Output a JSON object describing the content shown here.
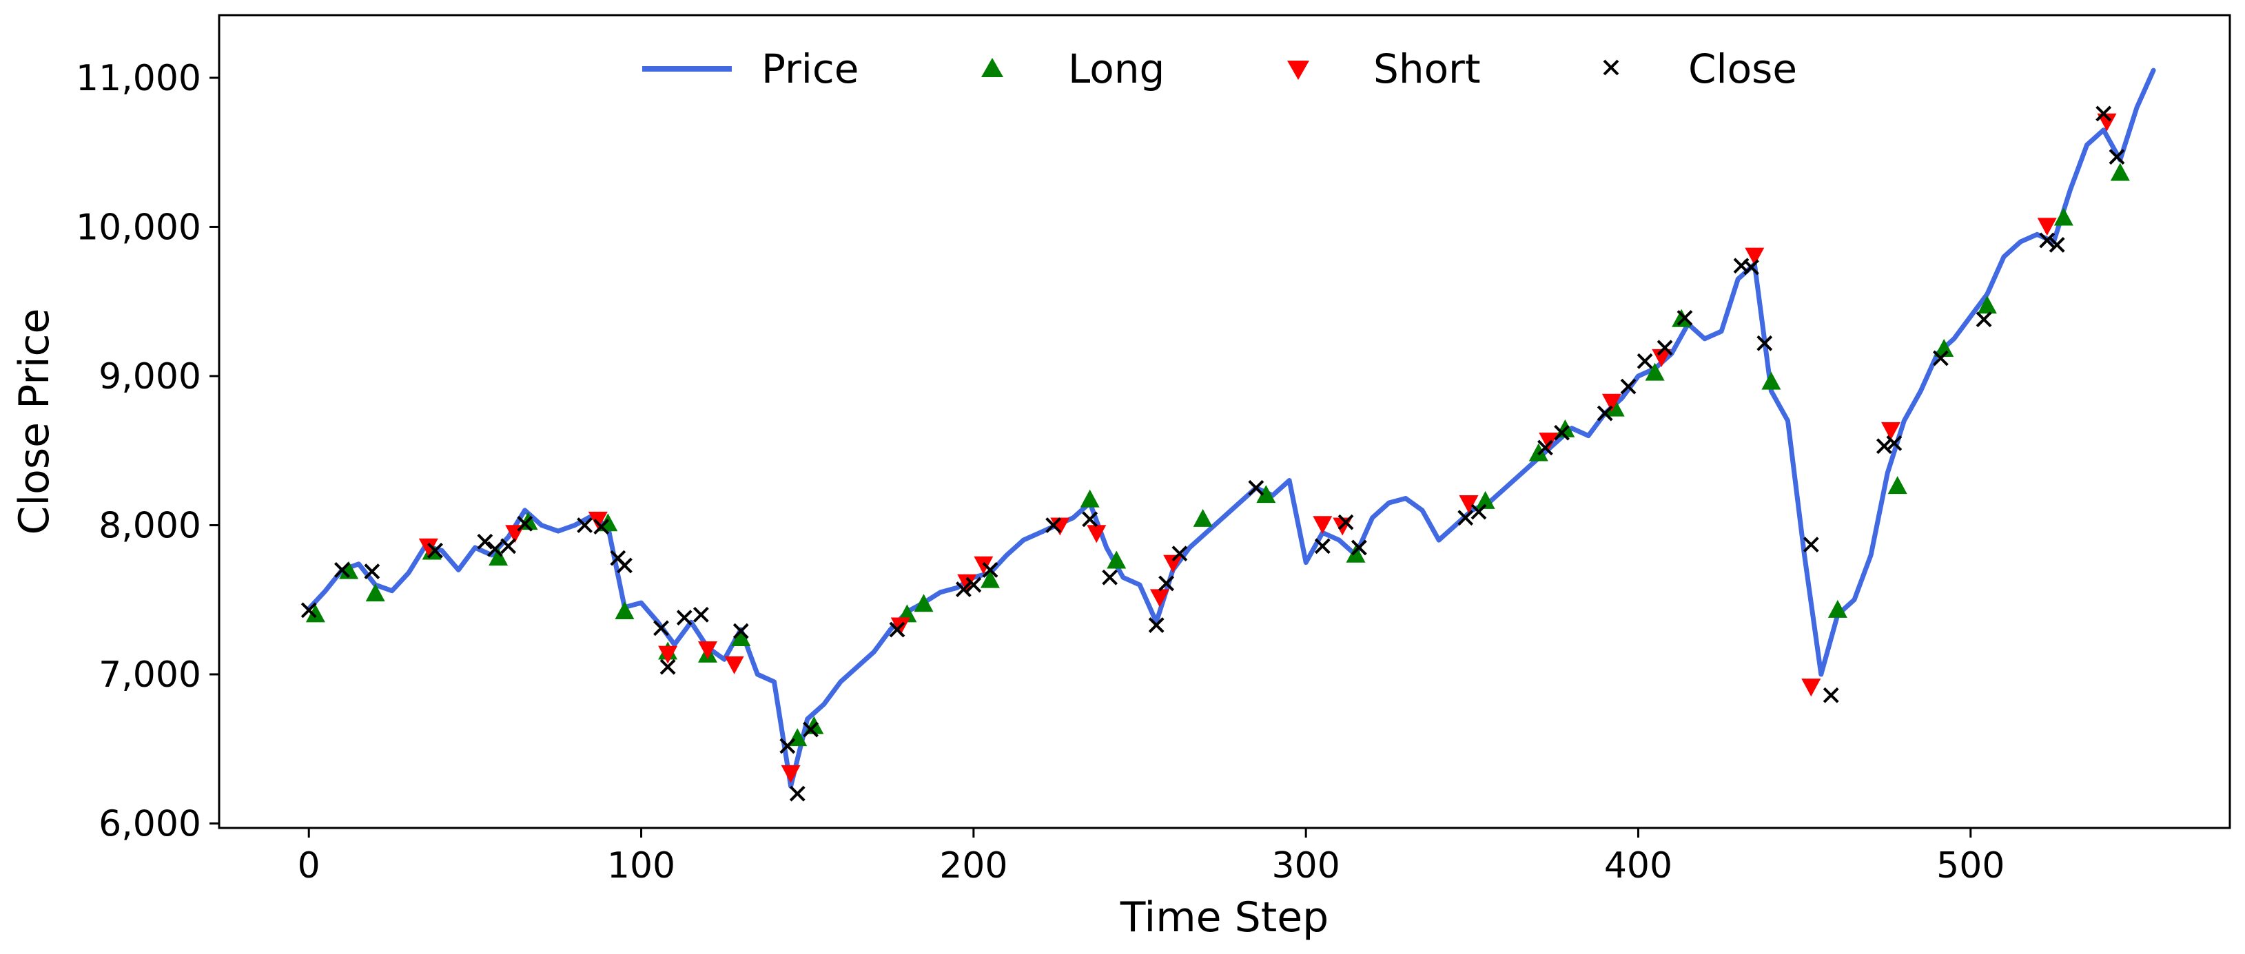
{
  "chart_data": {
    "type": "line",
    "title": "",
    "xlabel": "Time Step",
    "ylabel": "Close Price",
    "xlim": [
      -27,
      578
    ],
    "ylim": [
      5970,
      11420
    ],
    "grid": false,
    "legend_position": "top",
    "x_ticks": [
      0,
      100,
      200,
      300,
      400,
      500
    ],
    "x_tick_labels": [
      "0",
      "100",
      "200",
      "300",
      "400",
      "500"
    ],
    "y_ticks": [
      6000,
      7000,
      8000,
      9000,
      10000,
      11000
    ],
    "y_tick_labels": [
      "6,000",
      "7,000",
      "8,000",
      "9,000",
      "10,000",
      "11,000"
    ],
    "series": [
      {
        "name": "Price",
        "kind": "line",
        "color": "#4169e1",
        "points": [
          [
            0,
            7440
          ],
          [
            5,
            7560
          ],
          [
            10,
            7700
          ],
          [
            15,
            7740
          ],
          [
            20,
            7600
          ],
          [
            25,
            7560
          ],
          [
            30,
            7680
          ],
          [
            35,
            7860
          ],
          [
            40,
            7830
          ],
          [
            45,
            7700
          ],
          [
            50,
            7850
          ],
          [
            55,
            7800
          ],
          [
            60,
            7920
          ],
          [
            65,
            8100
          ],
          [
            70,
            8000
          ],
          [
            75,
            7960
          ],
          [
            80,
            8000
          ],
          [
            85,
            8060
          ],
          [
            90,
            7990
          ],
          [
            95,
            7450
          ],
          [
            100,
            7480
          ],
          [
            105,
            7350
          ],
          [
            110,
            7200
          ],
          [
            115,
            7350
          ],
          [
            120,
            7180
          ],
          [
            125,
            7100
          ],
          [
            130,
            7300
          ],
          [
            135,
            7000
          ],
          [
            140,
            6950
          ],
          [
            145,
            6250
          ],
          [
            150,
            6700
          ],
          [
            155,
            6800
          ],
          [
            160,
            6950
          ],
          [
            165,
            7050
          ],
          [
            170,
            7150
          ],
          [
            175,
            7300
          ],
          [
            180,
            7420
          ],
          [
            185,
            7480
          ],
          [
            190,
            7550
          ],
          [
            195,
            7580
          ],
          [
            200,
            7650
          ],
          [
            205,
            7680
          ],
          [
            210,
            7800
          ],
          [
            215,
            7900
          ],
          [
            220,
            7950
          ],
          [
            225,
            8000
          ],
          [
            230,
            8050
          ],
          [
            235,
            8150
          ],
          [
            240,
            7850
          ],
          [
            245,
            7650
          ],
          [
            250,
            7600
          ],
          [
            255,
            7350
          ],
          [
            260,
            7700
          ],
          [
            265,
            7850
          ],
          [
            270,
            7950
          ],
          [
            275,
            8050
          ],
          [
            280,
            8150
          ],
          [
            285,
            8250
          ],
          [
            290,
            8200
          ],
          [
            295,
            8300
          ],
          [
            300,
            7750
          ],
          [
            305,
            7950
          ],
          [
            310,
            7900
          ],
          [
            315,
            7800
          ],
          [
            320,
            8050
          ],
          [
            325,
            8150
          ],
          [
            330,
            8180
          ],
          [
            335,
            8100
          ],
          [
            340,
            7900
          ],
          [
            345,
            8000
          ],
          [
            350,
            8100
          ],
          [
            355,
            8150
          ],
          [
            360,
            8250
          ],
          [
            365,
            8350
          ],
          [
            370,
            8450
          ],
          [
            375,
            8550
          ],
          [
            380,
            8650
          ],
          [
            385,
            8600
          ],
          [
            390,
            8750
          ],
          [
            395,
            8850
          ],
          [
            400,
            9000
          ],
          [
            405,
            9050
          ],
          [
            410,
            9150
          ],
          [
            415,
            9350
          ],
          [
            420,
            9250
          ],
          [
            425,
            9300
          ],
          [
            430,
            9650
          ],
          [
            435,
            9750
          ],
          [
            440,
            8900
          ],
          [
            445,
            8700
          ],
          [
            450,
            7800
          ],
          [
            455,
            7000
          ],
          [
            460,
            7400
          ],
          [
            465,
            7500
          ],
          [
            470,
            7800
          ],
          [
            475,
            8350
          ],
          [
            480,
            8700
          ],
          [
            485,
            8900
          ],
          [
            490,
            9150
          ],
          [
            495,
            9250
          ],
          [
            500,
            9400
          ],
          [
            505,
            9550
          ],
          [
            510,
            9800
          ],
          [
            515,
            9900
          ],
          [
            520,
            9950
          ],
          [
            525,
            9900
          ],
          [
            530,
            10250
          ],
          [
            535,
            10550
          ],
          [
            540,
            10650
          ],
          [
            545,
            10450
          ],
          [
            550,
            10800
          ],
          [
            555,
            11050
          ]
        ]
      },
      {
        "name": "Long",
        "kind": "marker",
        "marker": "triangle-up",
        "color": "#008000",
        "points": [
          [
            2,
            7400
          ],
          [
            12,
            7690
          ],
          [
            20,
            7540
          ],
          [
            37,
            7820
          ],
          [
            57,
            7780
          ],
          [
            66,
            8020
          ],
          [
            90,
            8010
          ],
          [
            95,
            7420
          ],
          [
            108,
            7150
          ],
          [
            120,
            7130
          ],
          [
            130,
            7240
          ],
          [
            147,
            6570
          ],
          [
            152,
            6650
          ],
          [
            180,
            7400
          ],
          [
            185,
            7470
          ],
          [
            205,
            7630
          ],
          [
            235,
            8170
          ],
          [
            243,
            7760
          ],
          [
            269,
            8040
          ],
          [
            288,
            8200
          ],
          [
            315,
            7800
          ],
          [
            354,
            8160
          ],
          [
            370,
            8480
          ],
          [
            378,
            8640
          ],
          [
            393,
            8780
          ],
          [
            405,
            9020
          ],
          [
            413,
            9380
          ],
          [
            440,
            8960
          ],
          [
            460,
            7430
          ],
          [
            478,
            8260
          ],
          [
            492,
            9180
          ],
          [
            505,
            9470
          ],
          [
            528,
            10060
          ],
          [
            545,
            10360
          ]
        ]
      },
      {
        "name": "Short",
        "kind": "marker",
        "marker": "triangle-down",
        "color": "#ff0000",
        "points": [
          [
            36,
            7860
          ],
          [
            62,
            7950
          ],
          [
            87,
            8040
          ],
          [
            108,
            7140
          ],
          [
            120,
            7170
          ],
          [
            128,
            7070
          ],
          [
            145,
            6340
          ],
          [
            178,
            7330
          ],
          [
            198,
            7620
          ],
          [
            203,
            7740
          ],
          [
            226,
            8000
          ],
          [
            237,
            7950
          ],
          [
            256,
            7520
          ],
          [
            260,
            7750
          ],
          [
            305,
            8010
          ],
          [
            311,
            8000
          ],
          [
            349,
            8150
          ],
          [
            373,
            8570
          ],
          [
            392,
            8830
          ],
          [
            407,
            9130
          ],
          [
            435,
            9810
          ],
          [
            452,
            6920
          ],
          [
            476,
            8640
          ],
          [
            523,
            10010
          ],
          [
            541,
            10710
          ]
        ]
      },
      {
        "name": "Close",
        "kind": "marker",
        "marker": "x",
        "color": "#000000",
        "points": [
          [
            0,
            7430
          ],
          [
            10,
            7700
          ],
          [
            19,
            7690
          ],
          [
            38,
            7830
          ],
          [
            53,
            7890
          ],
          [
            56,
            7840
          ],
          [
            60,
            7860
          ],
          [
            65,
            8010
          ],
          [
            83,
            8000
          ],
          [
            88,
            7990
          ],
          [
            93,
            7780
          ],
          [
            95,
            7730
          ],
          [
            106,
            7310
          ],
          [
            108,
            7050
          ],
          [
            113,
            7380
          ],
          [
            118,
            7400
          ],
          [
            130,
            7290
          ],
          [
            144,
            6520
          ],
          [
            147,
            6200
          ],
          [
            151,
            6630
          ],
          [
            177,
            7300
          ],
          [
            197,
            7570
          ],
          [
            200,
            7600
          ],
          [
            205,
            7700
          ],
          [
            224,
            8000
          ],
          [
            235,
            8040
          ],
          [
            241,
            7650
          ],
          [
            255,
            7330
          ],
          [
            258,
            7610
          ],
          [
            262,
            7810
          ],
          [
            285,
            8250
          ],
          [
            305,
            7860
          ],
          [
            312,
            8020
          ],
          [
            316,
            7850
          ],
          [
            348,
            8050
          ],
          [
            352,
            8090
          ],
          [
            372,
            8520
          ],
          [
            377,
            8620
          ],
          [
            390,
            8750
          ],
          [
            397,
            8930
          ],
          [
            402,
            9100
          ],
          [
            408,
            9190
          ],
          [
            414,
            9390
          ],
          [
            431,
            9740
          ],
          [
            434,
            9730
          ],
          [
            438,
            9220
          ],
          [
            452,
            7870
          ],
          [
            458,
            6860
          ],
          [
            474,
            8530
          ],
          [
            477,
            8550
          ],
          [
            491,
            9120
          ],
          [
            504,
            9380
          ],
          [
            523,
            9910
          ],
          [
            526,
            9880
          ],
          [
            540,
            10760
          ],
          [
            544,
            10470
          ]
        ]
      }
    ]
  }
}
